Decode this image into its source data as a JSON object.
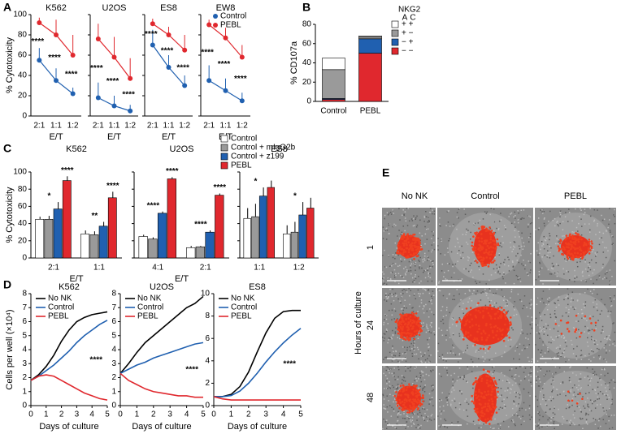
{
  "chart_data": [
    {
      "type": "line",
      "panel": "A",
      "title": "K562",
      "ylabel": "% Cytotoxicity",
      "xlabel": "E/T",
      "categories": [
        "2:1",
        "1:1",
        "1:2"
      ],
      "ylim": [
        0,
        100
      ],
      "yticks": [
        0,
        20,
        40,
        60,
        80,
        100
      ],
      "series": [
        {
          "color": "#2060b0",
          "values": [
            55,
            35,
            22
          ],
          "errors": [
            12,
            12,
            6
          ]
        },
        {
          "color": "#e0282e",
          "values": [
            92,
            80,
            60
          ],
          "errors": [
            5,
            15,
            20
          ]
        }
      ],
      "annotations": [
        "****",
        "****",
        "****"
      ]
    },
    {
      "type": "line",
      "title": "U2OS",
      "xlabel": "E/T",
      "categories": [
        "2:1",
        "1:1",
        "1:2"
      ],
      "ylim": [
        0,
        100
      ],
      "yticks": [
        0,
        20,
        40,
        60,
        80,
        100
      ],
      "series": [
        {
          "color": "#2060b0",
          "values": [
            18,
            10,
            5
          ],
          "errors": [
            15,
            10,
            6
          ]
        },
        {
          "color": "#e0282e",
          "values": [
            76,
            58,
            37
          ],
          "errors": [
            15,
            20,
            20
          ]
        }
      ],
      "annotations": [
        "****",
        "****",
        "****"
      ]
    },
    {
      "type": "line",
      "title": "ES8",
      "xlabel": "E/T",
      "categories": [
        "2:1",
        "1:1",
        "1:2"
      ],
      "ylim": [
        0,
        100
      ],
      "yticks": [
        0,
        20,
        40,
        60,
        80,
        100
      ],
      "series": [
        {
          "color": "#2060b0",
          "values": [
            70,
            48,
            30
          ],
          "errors": [
            15,
            12,
            10
          ]
        },
        {
          "color": "#e0282e",
          "values": [
            91,
            80,
            65
          ],
          "errors": [
            5,
            8,
            15
          ]
        }
      ],
      "annotations": [
        "****",
        "****",
        "****"
      ]
    },
    {
      "type": "line",
      "title": "EW8",
      "xlabel": "E/T",
      "categories": [
        "2:1",
        "1:1",
        "1:2"
      ],
      "ylim": [
        0,
        100
      ],
      "yticks": [
        0,
        20,
        40,
        60,
        80,
        100
      ],
      "series": [
        {
          "name": "Control",
          "color": "#2060b0",
          "values": [
            35,
            25,
            15
          ],
          "errors": [
            15,
            12,
            8
          ]
        },
        {
          "name": "PEBL",
          "color": "#e0282e",
          "values": [
            90,
            77,
            58
          ],
          "errors": [
            5,
            10,
            12
          ]
        }
      ],
      "annotations": [
        "****",
        "****",
        "****"
      ]
    },
    {
      "type": "bar",
      "stacked": true,
      "panel": "B",
      "ylabel": "% CD107a",
      "categories": [
        "Control",
        "PEBL"
      ],
      "ylim": [
        0,
        80
      ],
      "yticks": [
        0,
        20,
        40,
        60,
        80
      ],
      "legend_title": "NKG2",
      "legend_columns": [
        "A",
        "C"
      ],
      "series": [
        {
          "name": "+ +",
          "color": "#ffffff",
          "values": [
            12,
            1
          ]
        },
        {
          "name": "+ −",
          "color": "#9a9a9a",
          "values": [
            30,
            2
          ]
        },
        {
          "name": "− +",
          "color": "#2060b0",
          "values": [
            1,
            15
          ]
        },
        {
          "name": "− −",
          "color": "#e0282e",
          "values": [
            2,
            50
          ]
        }
      ]
    },
    {
      "type": "bar",
      "panel": "C",
      "title": "K562",
      "ylabel": "% Cytotoxicity",
      "xlabel": "E/T",
      "categories": [
        "2:1",
        "1:1"
      ],
      "ylim": [
        0,
        100
      ],
      "yticks": [
        0,
        20,
        40,
        60,
        80,
        100
      ],
      "series": [
        {
          "color": "#ffffff",
          "values": [
            45,
            28
          ],
          "errors": [
            3,
            4
          ]
        },
        {
          "color": "#9a9a9a",
          "values": [
            45,
            27
          ],
          "errors": [
            4,
            4
          ]
        },
        {
          "color": "#2060b0",
          "values": [
            57,
            37
          ],
          "errors": [
            8,
            5
          ]
        },
        {
          "color": "#e0282e",
          "values": [
            90,
            70
          ],
          "errors": [
            5,
            7
          ]
        }
      ],
      "annotations": [
        [
          "*",
          "****"
        ],
        [
          "**",
          "****"
        ]
      ]
    },
    {
      "type": "bar",
      "title": "U2OS",
      "xlabel": "E/T",
      "categories": [
        "4:1",
        "2:1"
      ],
      "ylim": [
        0,
        100
      ],
      "yticks": [
        0,
        20,
        40,
        60,
        80,
        100
      ],
      "series": [
        {
          "name": "Control",
          "color": "#ffffff",
          "values": [
            25,
            12
          ],
          "errors": [
            2,
            2
          ]
        },
        {
          "name": "Control + mIgG2b",
          "color": "#9a9a9a",
          "values": [
            22,
            13
          ],
          "errors": [
            2,
            1
          ]
        },
        {
          "name": "Control + z199",
          "color": "#2060b0",
          "values": [
            52,
            30
          ],
          "errors": [
            2,
            2
          ]
        },
        {
          "name": "PEBL",
          "color": "#e0282e",
          "values": [
            92,
            73
          ],
          "errors": [
            2,
            2
          ]
        }
      ],
      "annotations": [
        [
          "****",
          "****"
        ],
        [
          "****",
          "****"
        ]
      ]
    },
    {
      "type": "bar",
      "title": "ES8",
      "categories": [
        "1:1",
        "1:2"
      ],
      "ylim": [
        0,
        100
      ],
      "yticks": [
        0,
        20,
        40,
        60,
        80,
        100
      ],
      "series": [
        {
          "color": "#ffffff",
          "values": [
            46,
            28
          ],
          "errors": [
            12,
            10
          ]
        },
        {
          "color": "#9a9a9a",
          "values": [
            48,
            30
          ],
          "errors": [
            15,
            12
          ]
        },
        {
          "color": "#2060b0",
          "values": [
            72,
            50
          ],
          "errors": [
            10,
            15
          ]
        },
        {
          "color": "#e0282e",
          "values": [
            82,
            58
          ],
          "errors": [
            8,
            12
          ]
        }
      ],
      "annotations": [
        [
          "*"
        ],
        [
          "*"
        ]
      ]
    },
    {
      "type": "line",
      "panel": "D",
      "title": "K562",
      "ylabel": "Cells per well (×10⁴)",
      "xlabel": "Days of culture",
      "x": [
        0,
        0.5,
        1,
        1.5,
        2,
        2.5,
        3,
        3.5,
        4,
        4.5,
        5
      ],
      "xlim": [
        0,
        5
      ],
      "xticks": [
        0,
        1,
        2,
        3,
        4,
        5
      ],
      "ylim": [
        0,
        8
      ],
      "yticks": [
        0,
        1,
        2,
        3,
        4,
        5,
        6,
        7,
        8
      ],
      "series": [
        {
          "name": "No NK",
          "color": "#000000",
          "values": [
            1.8,
            2.2,
            2.8,
            3.6,
            4.6,
            5.4,
            6.0,
            6.3,
            6.5,
            6.6,
            6.7
          ]
        },
        {
          "name": "Control",
          "color": "#2060b0",
          "values": [
            1.8,
            2.1,
            2.5,
            2.9,
            3.4,
            3.9,
            4.5,
            5.0,
            5.4,
            5.8,
            6.1
          ]
        },
        {
          "name": "PEBL",
          "color": "#e0282e",
          "values": [
            1.8,
            2.1,
            2.2,
            2.1,
            1.8,
            1.5,
            1.2,
            0.9,
            0.7,
            0.5,
            0.4
          ]
        }
      ],
      "annotations": [
        "****"
      ]
    },
    {
      "type": "line",
      "title": "U2OS",
      "xlabel": "Days of culture",
      "x": [
        0,
        0.5,
        1,
        1.5,
        2,
        2.5,
        3,
        3.5,
        4,
        4.5,
        5
      ],
      "xlim": [
        0,
        5
      ],
      "xticks": [
        0,
        1,
        2,
        3,
        4,
        5
      ],
      "ylim": [
        0,
        8
      ],
      "yticks": [
        0,
        1,
        2,
        3,
        4,
        5,
        6,
        7,
        8
      ],
      "series": [
        {
          "name": "No NK",
          "color": "#000000",
          "values": [
            2.3,
            3.0,
            3.8,
            4.5,
            5.0,
            5.5,
            6.0,
            6.5,
            7.0,
            7.3,
            7.8
          ]
        },
        {
          "name": "Control",
          "color": "#2060b0",
          "values": [
            2.3,
            2.6,
            2.9,
            3.1,
            3.4,
            3.6,
            3.8,
            4.0,
            4.2,
            4.4,
            4.5
          ]
        },
        {
          "name": "PEBL",
          "color": "#e0282e",
          "values": [
            2.3,
            1.8,
            1.5,
            1.2,
            1.0,
            0.9,
            0.8,
            0.7,
            0.7,
            0.6,
            0.6
          ]
        }
      ],
      "annotations": [
        "****"
      ]
    },
    {
      "type": "line",
      "title": "ES8",
      "xlabel": "Days of culture",
      "x": [
        0,
        0.5,
        1,
        1.5,
        2,
        2.5,
        3,
        3.5,
        4,
        4.5,
        5
      ],
      "xlim": [
        0,
        5
      ],
      "xticks": [
        0,
        1,
        2,
        3,
        4,
        5
      ],
      "ylim": [
        0,
        10
      ],
      "yticks": [
        0,
        2,
        4,
        6,
        8,
        10
      ],
      "series": [
        {
          "name": "No NK",
          "color": "#000000",
          "values": [
            0.8,
            0.8,
            1.0,
            1.7,
            3.0,
            4.8,
            6.5,
            7.8,
            8.4,
            8.5,
            8.5
          ]
        },
        {
          "name": "Control",
          "color": "#2060b0",
          "values": [
            0.8,
            0.8,
            0.9,
            1.3,
            2.0,
            2.9,
            3.9,
            4.8,
            5.6,
            6.3,
            6.9
          ]
        },
        {
          "name": "PEBL",
          "color": "#e0282e",
          "values": [
            0.8,
            0.6,
            0.5,
            0.5,
            0.5,
            0.5,
            0.5,
            0.5,
            0.5,
            0.5,
            0.5
          ]
        }
      ],
      "annotations": [
        "****"
      ]
    }
  ],
  "image_grid": {
    "panel": "E",
    "columns": [
      "No NK",
      "Control",
      "PEBL"
    ],
    "rows": [
      "1",
      "24",
      "48"
    ],
    "row_title": "Hours of culture"
  }
}
